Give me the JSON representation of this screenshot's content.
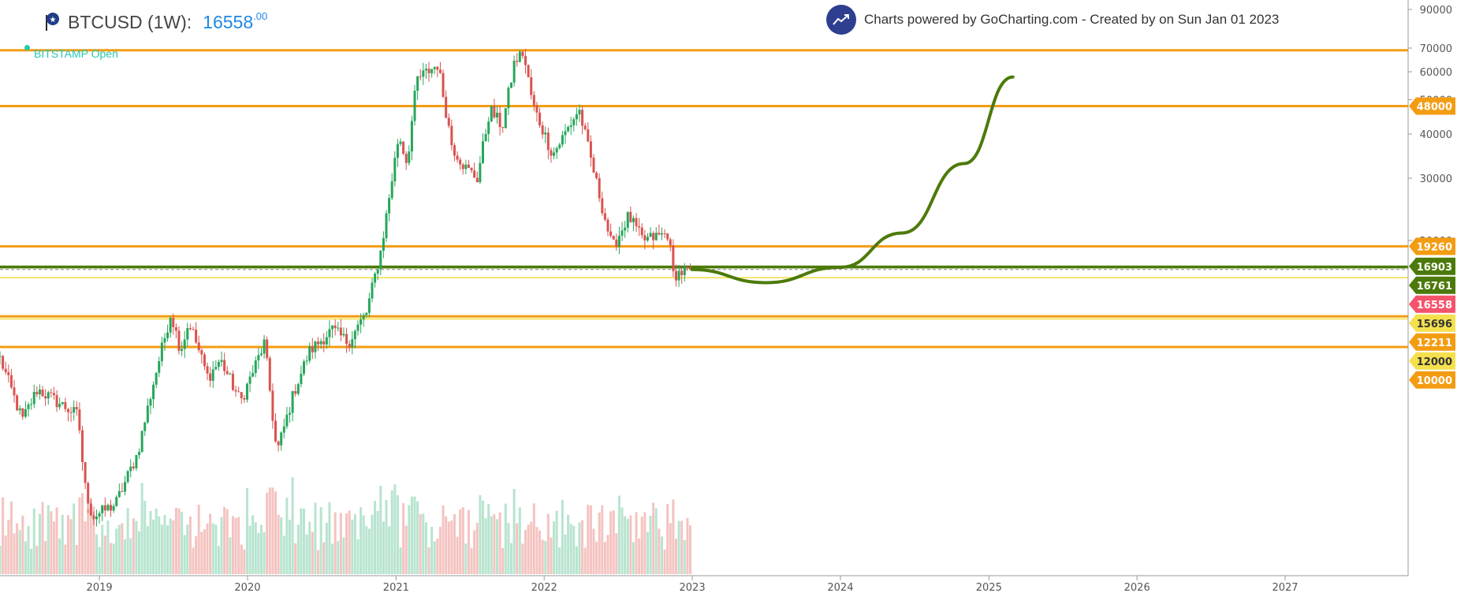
{
  "header": {
    "symbol": "BTCUSD (1W):",
    "price_int": "16558",
    "price_dec": ".00",
    "source": "BITSTAMP Open",
    "powered_text": "Charts powered by GoCharting.com - Created by  on Sun Jan 01 2023",
    "logo_icon": "gocharting-trend-icon",
    "symbol_icon": "bitcoin-flag-icon"
  },
  "chart_data": {
    "type": "candlestick",
    "symbol": "BTCUSD",
    "interval": "1W",
    "exchange": "BITSTAMP",
    "x_range": [
      "2018-05-01",
      "2027-10-31"
    ],
    "x_ticks": [
      "2019",
      "2020",
      "2021",
      "2022",
      "2023",
      "2024",
      "2025",
      "2026",
      "2027"
    ],
    "y_scale": "log",
    "y_ticks": [
      90000,
      70000,
      60000,
      50000,
      40000,
      30000,
      20000
    ],
    "colors": {
      "up": "#26a65b",
      "down": "#d9534f",
      "up_volume": "#b7e4cf",
      "down_volume": "#f4c3c0",
      "orange": "#f39c12",
      "green": "#4c7a0a",
      "yellow": "#f4e04d",
      "red_tag": "#f4546b"
    },
    "anchors": [
      [
        "2018-05-01",
        9300
      ],
      [
        "2018-06-25",
        6200
      ],
      [
        "2018-08-01",
        7600
      ],
      [
        "2018-11-10",
        6400
      ],
      [
        "2018-11-25",
        4100
      ],
      [
        "2018-12-15",
        3300
      ],
      [
        "2019-02-10",
        3600
      ],
      [
        "2019-04-05",
        5000
      ],
      [
        "2019-05-15",
        8000
      ],
      [
        "2019-06-26",
        12500
      ],
      [
        "2019-07-20",
        9800
      ],
      [
        "2019-08-10",
        11800
      ],
      [
        "2019-09-25",
        8200
      ],
      [
        "2019-10-26",
        9200
      ],
      [
        "2019-12-15",
        7000
      ],
      [
        "2020-02-12",
        10300
      ],
      [
        "2020-03-13",
        5000
      ],
      [
        "2020-04-25",
        7500
      ],
      [
        "2020-06-01",
        9700
      ],
      [
        "2020-07-27",
        11200
      ],
      [
        "2020-09-05",
        10300
      ],
      [
        "2020-10-20",
        12500
      ],
      [
        "2020-11-25",
        18800
      ],
      [
        "2021-01-08",
        40000
      ],
      [
        "2021-01-28",
        33000
      ],
      [
        "2021-02-21",
        57000
      ],
      [
        "2021-04-14",
        63000
      ],
      [
        "2021-05-19",
        37000
      ],
      [
        "2021-06-22",
        32000
      ],
      [
        "2021-07-20",
        30000
      ],
      [
        "2021-08-20",
        47000
      ],
      [
        "2021-09-20",
        42000
      ],
      [
        "2021-10-20",
        64000
      ],
      [
        "2021-11-10",
        68000
      ],
      [
        "2021-12-05",
        48000
      ],
      [
        "2022-01-22",
        35000
      ],
      [
        "2022-03-28",
        47000
      ],
      [
        "2022-05-10",
        29000
      ],
      [
        "2022-06-18",
        19000
      ],
      [
        "2022-07-28",
        23500
      ],
      [
        "2022-09-01",
        20000
      ],
      [
        "2022-11-05",
        21000
      ],
      [
        "2022-11-12",
        16000
      ],
      [
        "2022-12-31",
        16558
      ]
    ],
    "volume_note": "weekly volume bars along the bottom, green for up weeks and red for down weeks",
    "horizontal_levels": [
      {
        "value": 48000,
        "color": "orange"
      },
      {
        "value": 19260,
        "color": "orange"
      },
      {
        "value": 16903,
        "color": "green"
      },
      {
        "value": 16761,
        "color": "green"
      },
      {
        "value": 15696,
        "color": "yellow"
      },
      {
        "value": 12211,
        "color": "orange"
      },
      {
        "value": 12000,
        "color": "yellow"
      },
      {
        "value": 10000,
        "color": "orange"
      },
      {
        "value": 69000,
        "color": "orange"
      }
    ],
    "level_tags": [
      {
        "value": 48000,
        "label": "48000",
        "color": "orange"
      },
      {
        "value": 19260,
        "label": "19260",
        "color": "orange"
      },
      {
        "value": 16903,
        "label": "16903",
        "color": "green"
      },
      {
        "value": 16761,
        "label": "16761",
        "color": "green"
      },
      {
        "value": 16558,
        "label": "16558",
        "color": "red"
      },
      {
        "value": 15696,
        "label": "15696",
        "color": "yellow"
      },
      {
        "value": 12211,
        "label": "12211",
        "color": "orange"
      },
      {
        "value": 12000,
        "label": "12000",
        "color": "yellow"
      },
      {
        "value": 10000,
        "label": "10000",
        "color": "orange"
      }
    ],
    "projection_curve": {
      "color": "green",
      "points": [
        [
          "2022-12-31",
          16558
        ],
        [
          "2023-07-01",
          15200
        ],
        [
          "2024-01-01",
          16800
        ],
        [
          "2024-06-01",
          21000
        ],
        [
          "2024-11-01",
          33000
        ],
        [
          "2025-03-01",
          58000
        ]
      ]
    }
  }
}
